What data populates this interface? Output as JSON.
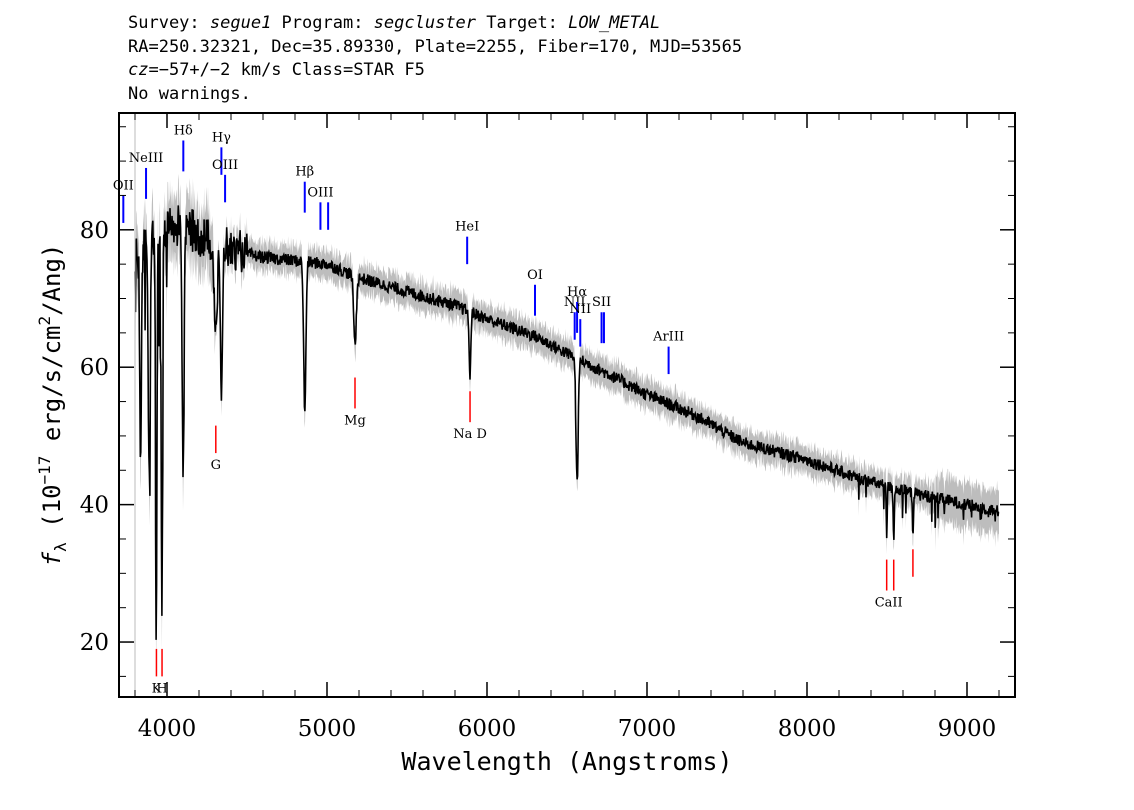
{
  "header": {
    "line1": {
      "survey_label": "Survey: ",
      "survey": "segue1",
      "program_label": " Program: ",
      "program": "segcluster",
      "target_label": " Target: ",
      "target": "LOW_METAL"
    },
    "line2": "RA=250.32321, Dec=35.89330, Plate=2255, Fiber=170, MJD=53565",
    "line3": {
      "cz": "cz",
      "cz_value": "=−57+/−2 km/s",
      "class": " Class=STAR F5"
    },
    "line4": "No warnings."
  },
  "chart_data": {
    "type": "line",
    "title": "",
    "xlabel": "Wavelength (Angstroms)",
    "ylabel": {
      "f": "f",
      "sub": "λ",
      "pre": " (10",
      "sup": "−17",
      "post": " erg/s/cm",
      "sup2": "2",
      "end": "/Ang)"
    },
    "xlim": [
      3700,
      9300
    ],
    "ylim": [
      12,
      97
    ],
    "x_ticks": [
      4000,
      5000,
      6000,
      7000,
      8000,
      9000
    ],
    "x_tick_labels": [
      "4000",
      "5000",
      "6000",
      "7000",
      "8000",
      "9000"
    ],
    "y_ticks": [
      20,
      40,
      60,
      80
    ],
    "y_tick_labels": [
      "20",
      "40",
      "60",
      "80"
    ],
    "grid": false,
    "continuum": [
      [
        3800,
        76
      ],
      [
        3900,
        78
      ],
      [
        4000,
        80
      ],
      [
        4100,
        81
      ],
      [
        4200,
        79
      ],
      [
        4400,
        77
      ],
      [
        4600,
        76
      ],
      [
        4800,
        75.5
      ],
      [
        5000,
        75
      ],
      [
        5200,
        73
      ],
      [
        5500,
        71
      ],
      [
        5800,
        69
      ],
      [
        6000,
        67
      ],
      [
        6300,
        64.5
      ],
      [
        6500,
        62
      ],
      [
        6800,
        58.5
      ],
      [
        7000,
        56
      ],
      [
        7300,
        53
      ],
      [
        7600,
        49
      ],
      [
        8000,
        46.5
      ],
      [
        8300,
        44
      ],
      [
        8600,
        42
      ],
      [
        8900,
        40.5
      ],
      [
        9200,
        39
      ]
    ],
    "absorption": [
      {
        "x": 3835,
        "depth": 32,
        "w": 5
      },
      {
        "x": 3889,
        "depth": 34,
        "w": 6
      },
      {
        "x": 3933,
        "depth": 58,
        "w": 4
      },
      {
        "x": 3968,
        "depth": 55,
        "w": 4
      },
      {
        "x": 4101,
        "depth": 36,
        "w": 6
      },
      {
        "x": 4305,
        "depth": 12,
        "w": 10
      },
      {
        "x": 4340,
        "depth": 24,
        "w": 6
      },
      {
        "x": 4861,
        "depth": 22,
        "w": 7
      },
      {
        "x": 5175,
        "depth": 10,
        "w": 8
      },
      {
        "x": 5893,
        "depth": 10,
        "w": 5
      },
      {
        "x": 6563,
        "depth": 18,
        "w": 7
      },
      {
        "x": 8498,
        "depth": 7,
        "w": 3
      },
      {
        "x": 8542,
        "depth": 8,
        "w": 3
      },
      {
        "x": 8662,
        "depth": 6,
        "w": 3
      }
    ],
    "emission_lines": [
      {
        "label": "OII",
        "x": 3727,
        "y1": 85,
        "y2": 81
      },
      {
        "label": "NeIII",
        "x": 3869,
        "y1": 89,
        "y2": 84.5
      },
      {
        "label": "Hδ",
        "x": 4102,
        "y1": 93,
        "y2": 88.5
      },
      {
        "label": "Hγ",
        "x": 4340,
        "y1": 92,
        "y2": 88
      },
      {
        "label": "OIII",
        "x": 4363,
        "y1": 88,
        "y2": 84
      },
      {
        "label": "Hβ",
        "x": 4861,
        "y1": 87,
        "y2": 82.5
      },
      {
        "label": "OIII",
        "x": 4959,
        "y1": 84,
        "y2": 80
      },
      {
        "label": "",
        "x": 5007,
        "y1": 84,
        "y2": 80
      },
      {
        "label": "HeI",
        "x": 5876,
        "y1": 79,
        "y2": 75
      },
      {
        "label": "OI",
        "x": 6300,
        "y1": 72,
        "y2": 67.5
      },
      {
        "label": "NII",
        "x": 6548,
        "y1": 68,
        "y2": 64
      },
      {
        "label": "Hα",
        "x": 6563,
        "y1": 69.5,
        "y2": 65
      },
      {
        "label": "NII",
        "x": 6583,
        "y1": 67,
        "y2": 63
      },
      {
        "label": "SII",
        "x": 6716,
        "y1": 68,
        "y2": 63.5
      },
      {
        "label": "",
        "x": 6731,
        "y1": 68,
        "y2": 63.5
      },
      {
        "label": "ArIII",
        "x": 7135,
        "y1": 63,
        "y2": 59
      }
    ],
    "absorption_markers": [
      {
        "label": "K",
        "x": 3934,
        "y1": 19,
        "y2": 15
      },
      {
        "label": "H",
        "x": 3969,
        "y1": 19,
        "y2": 15
      },
      {
        "label": "G",
        "x": 4305,
        "y1": 51.5,
        "y2": 47.5
      },
      {
        "label": "Mg",
        "x": 5175,
        "y1": 58.5,
        "y2": 54
      },
      {
        "label": "Na D",
        "x": 5894,
        "y1": 56.5,
        "y2": 52
      },
      {
        "label": "CaII",
        "x": 8498,
        "y1": 32,
        "y2": 27.5
      },
      {
        "label": "",
        "x": 8542,
        "y1": 32,
        "y2": 27.5
      },
      {
        "label": "CaII",
        "x": 8662,
        "y1": 33.5,
        "y2": 29.5
      }
    ],
    "colors": {
      "spectrum": "#000000",
      "error_band": "#bdbdbd",
      "emission": "#0000ff",
      "absorption": "#ff0000"
    }
  }
}
